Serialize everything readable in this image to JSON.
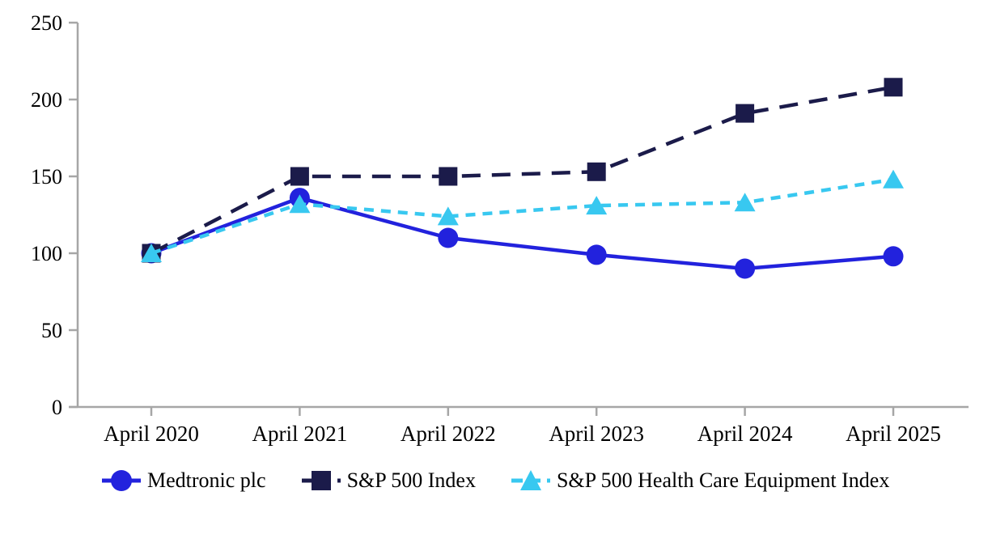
{
  "chart_data": {
    "type": "line",
    "title": "",
    "xlabel": "",
    "ylabel": "",
    "categories": [
      "April 2020",
      "April 2021",
      "April 2022",
      "April 2023",
      "April 2024",
      "April 2025"
    ],
    "series": [
      {
        "name": "Medtronic plc",
        "values": [
          100,
          136,
          110,
          99,
          90,
          98
        ],
        "color": "#2222dd",
        "marker": "circle",
        "line_style": "solid"
      },
      {
        "name": "S&P 500 Index",
        "values": [
          100,
          150,
          150,
          153,
          191,
          208
        ],
        "color": "#1b1b4a",
        "marker": "square",
        "line_style": "long-dash"
      },
      {
        "name": "S&P 500 Health Care Equipment Index",
        "values": [
          100,
          132,
          124,
          131,
          133,
          148
        ],
        "color": "#38c8f0",
        "marker": "triangle",
        "line_style": "dash"
      }
    ],
    "ylim": [
      0,
      250
    ],
    "yticks": [
      0,
      50,
      100,
      150,
      200,
      250
    ],
    "grid": false,
    "legend_position": "bottom",
    "axis_color": "#a6a6a6",
    "text_color": "#000000"
  }
}
